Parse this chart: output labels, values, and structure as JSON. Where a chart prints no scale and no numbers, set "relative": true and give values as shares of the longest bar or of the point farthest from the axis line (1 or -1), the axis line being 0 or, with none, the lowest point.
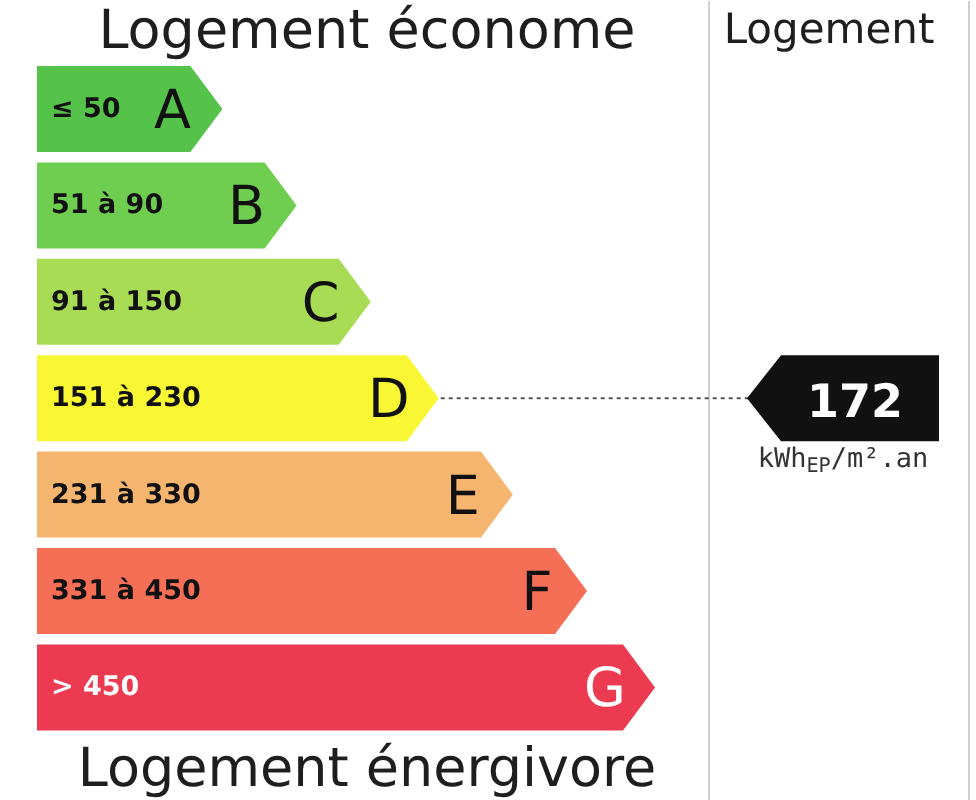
{
  "chart_data": {
    "type": "bar",
    "orientation": "horizontal",
    "relative": true,
    "title": "Logement économe",
    "xlabel": "Logement énergivore",
    "categories": [
      "≤ 50",
      "51 à 90",
      "91 à 150",
      "151 à 230",
      "231 à 330",
      "331 à 450",
      "> 450"
    ],
    "values": [
      0.3,
      0.42,
      0.54,
      0.65,
      0.77,
      0.89,
      1
    ],
    "colors": [
      "#55c24a",
      "#6fce4f",
      "#a8dc55",
      "#f9f733",
      "#f5b56f",
      "#f46f56",
      "#ec3b50"
    ],
    "annotations": [
      "Logement",
      {
        "text": "A",
        "x": 0.3,
        "y": "≤ 50"
      },
      {
        "text": "B",
        "x": 0.42,
        "y": "51 à 90"
      },
      {
        "text": "C",
        "x": 0.54,
        "y": "91 à 150"
      },
      {
        "text": "D",
        "x": 0.65,
        "y": "151 à 230"
      },
      {
        "text": "E",
        "x": 0.77,
        "y": "231 à 330"
      },
      {
        "text": "F",
        "x": 0.89,
        "y": "331 à 450"
      },
      {
        "text": "G",
        "x": 1,
        "y": "> 450"
      },
      {
        "text": "172",
        "x": 0.65,
        "y": "151 à 230"
      },
      "kWh$_{EP}$/m².an"
    ]
  }
}
